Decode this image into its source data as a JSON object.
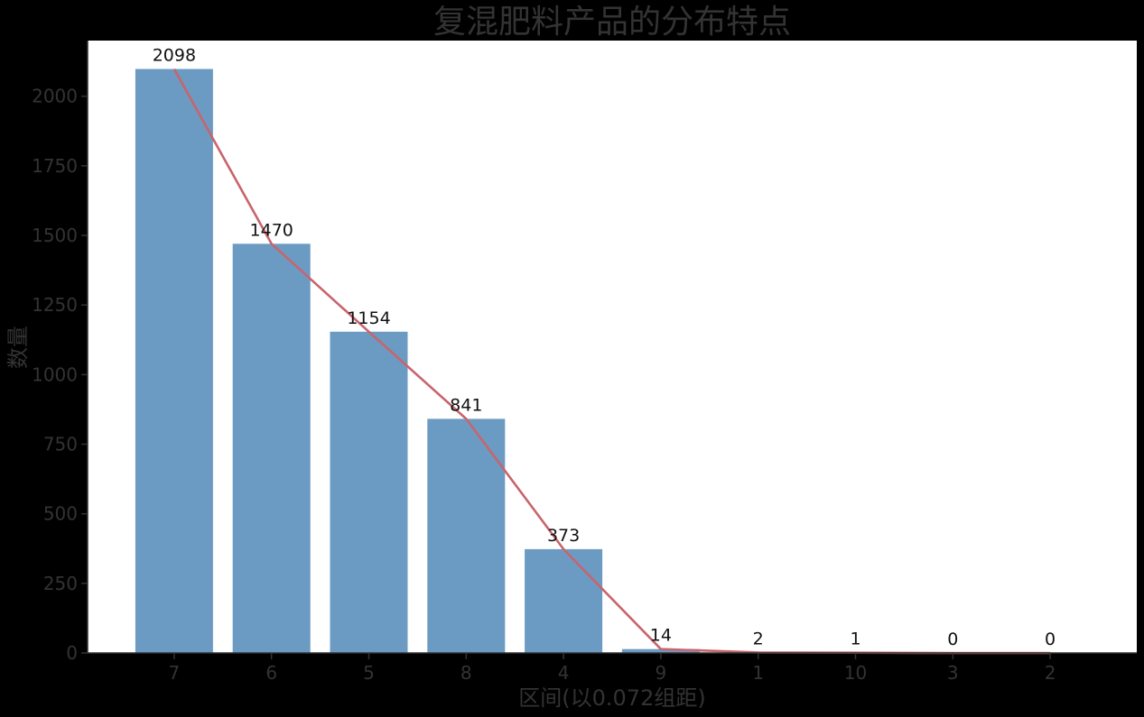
{
  "chart_data": {
    "type": "bar",
    "title": "复混肥料产品的分布特点",
    "xlabel": "区间(以0.072组距)",
    "ylabel": "数量",
    "categories": [
      "7",
      "6",
      "5",
      "8",
      "4",
      "9",
      "1",
      "10",
      "3",
      "2"
    ],
    "values": [
      2098,
      1470,
      1154,
      841,
      373,
      14,
      2,
      1,
      0,
      0
    ],
    "ylim": [
      0,
      2200
    ],
    "yticks": [
      0,
      250,
      500,
      750,
      1000,
      1250,
      1500,
      1750,
      2000
    ],
    "overlay_line": true,
    "data_labels": true,
    "grid": false,
    "legend": "none",
    "colors": {
      "bar": "#6b9bc3",
      "line": "#c8646c",
      "background": "#000000",
      "plot_background": "#ffffff",
      "text": "#333333"
    }
  }
}
